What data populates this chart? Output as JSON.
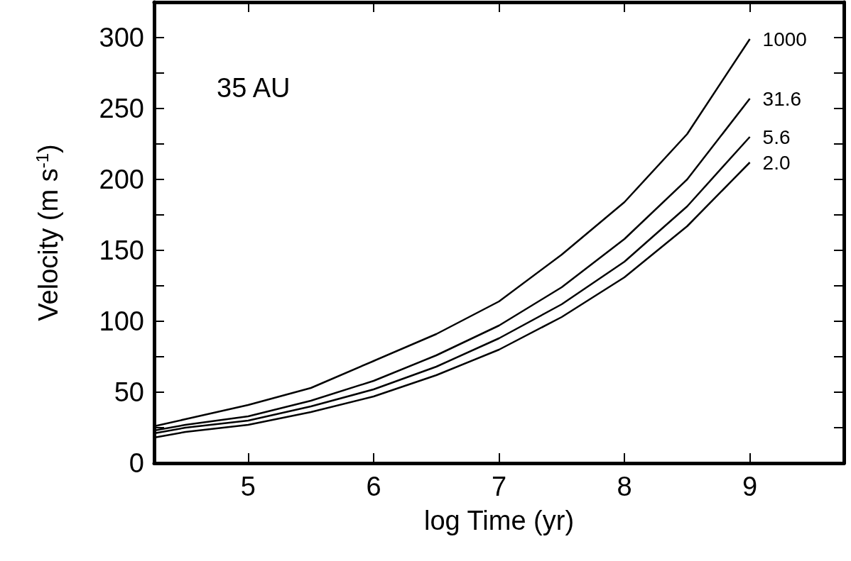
{
  "chart_data": {
    "type": "line",
    "xlabel": "log Time (yr)",
    "ylabel": "Velocity (m s$^{-1}$)",
    "annotations": [
      "35 AU"
    ],
    "x": [
      4.25,
      4.5,
      5,
      5.5,
      6,
      6.5,
      7,
      7.5,
      8,
      8.5,
      9
    ],
    "series": [
      {
        "name": "1000",
        "color": "#000000",
        "values": [
          26,
          31,
          41,
          53,
          72,
          91,
          114,
          147,
          184,
          232,
          299
        ]
      },
      {
        "name": "31.6",
        "color": "#000000",
        "values": [
          23,
          27,
          33,
          44,
          58,
          76,
          97,
          124,
          158,
          200,
          257
        ]
      },
      {
        "name": "5.6",
        "color": "#000000",
        "values": [
          21,
          25,
          30,
          40,
          52,
          68,
          88,
          112,
          142,
          181,
          230
        ]
      },
      {
        "name": "2.0",
        "color": "#000000",
        "values": [
          18,
          22,
          27,
          36,
          47,
          62,
          80,
          103,
          131,
          167,
          212
        ]
      }
    ],
    "xlim": [
      4.25,
      9.75
    ],
    "xticks": [
      5,
      6,
      7,
      8,
      9
    ],
    "ylim": [
      0,
      325
    ],
    "yticks": [
      0,
      {
        "value": 25,
        "label": null
      },
      50,
      {
        "value": 75,
        "label": null
      },
      100,
      {
        "value": 125,
        "label": null
      },
      150,
      {
        "value": 175,
        "label": null
      },
      200,
      {
        "value": 225,
        "label": null
      },
      250,
      {
        "value": 275,
        "label": null
      },
      300,
      {
        "value": 325,
        "label": null
      }
    ],
    "grid": false,
    "legend": "right",
    "marker": "none",
    "line_style": "solid"
  }
}
